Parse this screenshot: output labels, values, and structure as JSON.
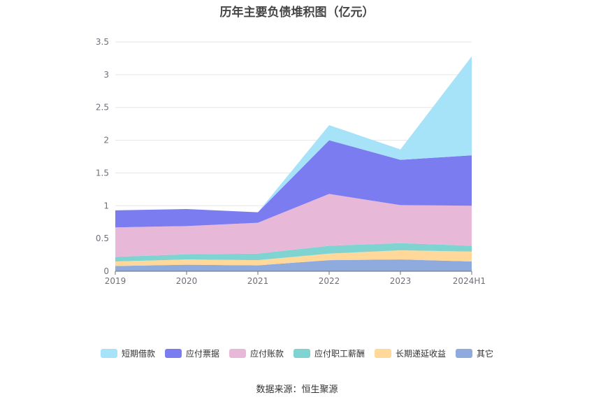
{
  "chart_data": {
    "type": "area",
    "stacked": true,
    "title": "历年主要负债堆积图（亿元）",
    "categories": [
      "2019",
      "2020",
      "2021",
      "2022",
      "2023",
      "2024H1"
    ],
    "y_ticks": [
      "0",
      "0.5",
      "1",
      "1.5",
      "2",
      "2.5",
      "3",
      "3.5"
    ],
    "ylim": [
      0,
      3.5
    ],
    "grid": true,
    "legend_position": "bottom",
    "series": [
      {
        "name": "其它",
        "color": "#8faadc",
        "values": [
          0.08,
          0.1,
          0.09,
          0.17,
          0.18,
          0.15
        ]
      },
      {
        "name": "长期递延收益",
        "color": "#ffd89a",
        "values": [
          0.07,
          0.08,
          0.08,
          0.1,
          0.14,
          0.15
        ]
      },
      {
        "name": "应付职工薪酬",
        "color": "#7fd4d2",
        "values": [
          0.07,
          0.08,
          0.1,
          0.12,
          0.11,
          0.09
        ]
      },
      {
        "name": "应付账款",
        "color": "#e8b8d8",
        "values": [
          0.45,
          0.43,
          0.47,
          0.79,
          0.58,
          0.61
        ]
      },
      {
        "name": "应付票据",
        "color": "#7b7cf0",
        "values": [
          0.26,
          0.26,
          0.16,
          0.82,
          0.69,
          0.77
        ]
      },
      {
        "name": "短期借款",
        "color": "#a6e2f8",
        "values": [
          0,
          0,
          0,
          0.23,
          0.16,
          1.51
        ]
      }
    ]
  },
  "legend": {
    "items": [
      {
        "label": "短期借款",
        "color": "#a6e2f8"
      },
      {
        "label": "应付票据",
        "color": "#7b7cf0"
      },
      {
        "label": "应付账款",
        "color": "#e8b8d8"
      },
      {
        "label": "应付职工薪酬",
        "color": "#7fd4d2"
      },
      {
        "label": "长期递延收益",
        "color": "#ffd89a"
      },
      {
        "label": "其它",
        "color": "#8faadc"
      }
    ]
  },
  "footer": {
    "source": "数据来源：恒生聚源"
  }
}
